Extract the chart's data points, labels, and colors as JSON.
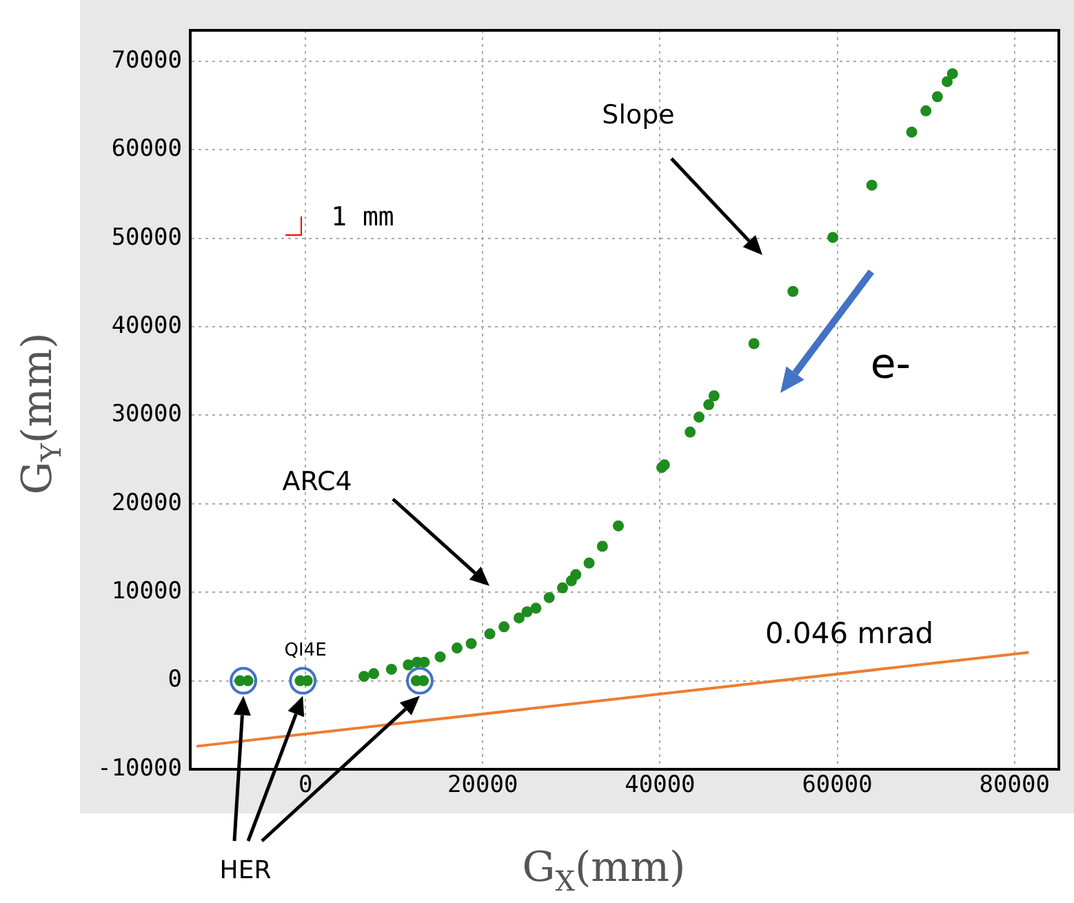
{
  "chart_data": {
    "type": "scatter",
    "xlabel": "G$_{X}$(mm)",
    "ylabel": "G$_{Y}$(mm)",
    "xlim": [
      -13000,
      85000
    ],
    "ylim": [
      -10000,
      73500
    ],
    "xticks": [
      0,
      20000,
      40000,
      60000,
      80000
    ],
    "yticks": [
      -10000,
      0,
      10000,
      20000,
      30000,
      40000,
      50000,
      60000,
      70000
    ],
    "grid": true,
    "legend": false,
    "series": [
      {
        "marker": "circle",
        "color": "#1e8c1e",
        "x": [
          -7400,
          -6500,
          -600,
          200,
          12500,
          13300,
          6600,
          7700,
          9700,
          11600,
          12600,
          13400,
          15200,
          17100,
          18700,
          20800,
          22400,
          24100,
          25000,
          26000,
          27500,
          29000,
          30000,
          30500,
          32000,
          33500,
          35300,
          40200,
          40500,
          43400,
          44400,
          45500,
          46100,
          50600,
          55000,
          59500,
          63900,
          68400,
          70000,
          71300,
          72400,
          73000
        ],
        "values": [
          0,
          0,
          0,
          0,
          0,
          0,
          500,
          800,
          1300,
          1800,
          2100,
          2100,
          2700,
          3700,
          4200,
          5300,
          6100,
          7100,
          7800,
          8200,
          9400,
          10500,
          11300,
          12000,
          13300,
          15200,
          17500,
          24100,
          24400,
          28100,
          29800,
          31200,
          32200,
          38100,
          44000,
          50100,
          56000,
          62000,
          64400,
          66000,
          67700,
          68600
        ]
      },
      {
        "marker": "circle",
        "color": "#4472c4",
        "x": [
          -7000,
          -300,
          12900
        ],
        "values": [
          0,
          0,
          0
        ]
      },
      {
        "type": "line",
        "marker": "none",
        "color": "#ed7d31",
        "x": [
          -12300,
          81600
        ],
        "values": [
          -7400,
          3200
        ]
      }
    ],
    "annotations": [
      "Slope",
      "ARC4",
      {
        "text": "QI4E",
        "x": 0,
        "y": 0
      },
      "1 mm",
      "0.046 mrad",
      "e-",
      "HER"
    ]
  }
}
